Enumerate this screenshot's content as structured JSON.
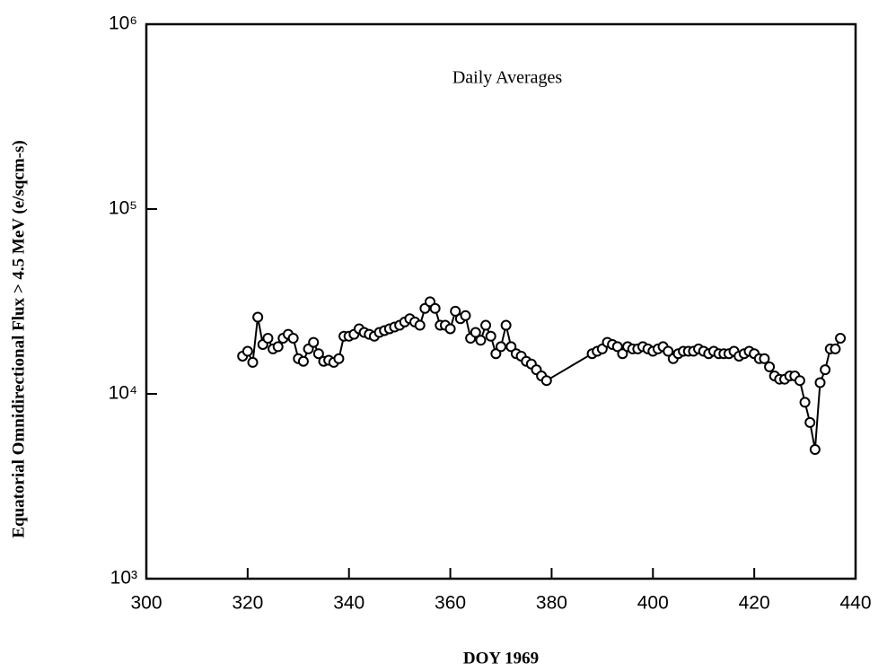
{
  "chart_data": {
    "type": "line",
    "annotation": "Daily Averages",
    "xlabel": "DOY 1969",
    "ylabel": "Equatorial Omnidirectional Flux > 4.5 MeV (e/sqcm-s)",
    "log_y": true,
    "color": "#000000",
    "xlim": [
      300,
      440
    ],
    "xticks": [
      300,
      320,
      340,
      360,
      380,
      400,
      420,
      440
    ],
    "ylim": [
      1000,
      1000000
    ],
    "yticks": [
      {
        "value": 1000,
        "label": "10³"
      },
      {
        "value": 10000,
        "label": "10⁴"
      },
      {
        "value": 100000,
        "label": "10⁵"
      },
      {
        "value": 1000000,
        "label": "10⁶"
      }
    ],
    "x": [
      319,
      320,
      321,
      322,
      323,
      324,
      325,
      326,
      327,
      328,
      329,
      330,
      331,
      332,
      333,
      334,
      335,
      336,
      337,
      338,
      339,
      340,
      341,
      342,
      343,
      344,
      345,
      346,
      347,
      348,
      349,
      350,
      351,
      352,
      353,
      354,
      355,
      356,
      357,
      358,
      359,
      360,
      361,
      362,
      363,
      364,
      365,
      366,
      367,
      368,
      369,
      370,
      371,
      372,
      373,
      374,
      375,
      376,
      377,
      378,
      379,
      388,
      389,
      390,
      391,
      392,
      393,
      394,
      395,
      396,
      397,
      398,
      399,
      400,
      401,
      402,
      403,
      404,
      405,
      406,
      407,
      408,
      409,
      410,
      411,
      412,
      413,
      414,
      415,
      416,
      417,
      418,
      419,
      420,
      421,
      422,
      423,
      424,
      425,
      426,
      427,
      428,
      429,
      430,
      431,
      432,
      433,
      434,
      435,
      436,
      437
    ],
    "values": [
      16000,
      17000,
      14800,
      26000,
      18500,
      20000,
      17500,
      18000,
      20000,
      21000,
      20000,
      15500,
      15000,
      17500,
      19000,
      16500,
      15000,
      15200,
      14800,
      15500,
      20500,
      20500,
      21000,
      22500,
      21500,
      21000,
      20500,
      21500,
      22000,
      22500,
      23000,
      23500,
      24500,
      25500,
      24500,
      23500,
      29000,
      31500,
      29000,
      23500,
      23500,
      22500,
      28000,
      25500,
      26500,
      20000,
      21500,
      19500,
      23500,
      20500,
      16500,
      18000,
      23500,
      18000,
      16500,
      16000,
      15000,
      14500,
      13500,
      12500,
      11800,
      16500,
      17000,
      17500,
      19000,
      18500,
      18000,
      16500,
      18000,
      17500,
      17500,
      18000,
      17500,
      17000,
      17500,
      18000,
      17000,
      15500,
      16500,
      17000,
      17000,
      17000,
      17500,
      17000,
      16500,
      17000,
      16500,
      16500,
      16500,
      17000,
      16000,
      16500,
      17000,
      16500,
      15500,
      15500,
      14000,
      12500,
      12000,
      12000,
      12500,
      12500,
      11800,
      9000,
      7000,
      5000,
      11500,
      13500,
      17500,
      17500,
      20000
    ]
  }
}
